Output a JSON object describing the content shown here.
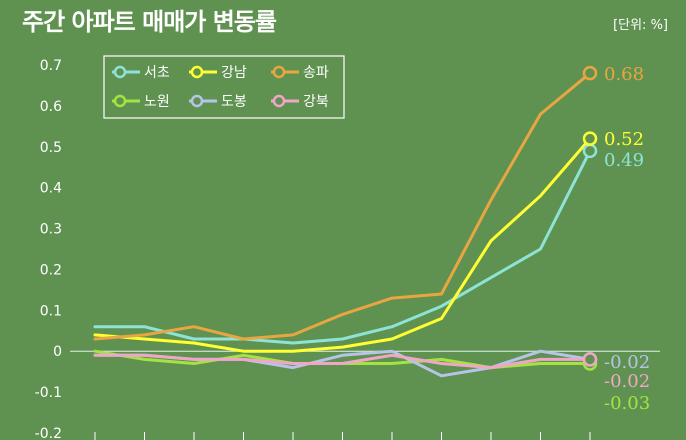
{
  "chart_data": {
    "type": "line",
    "title": "주간 아파트 매매가 변동률",
    "unit_label": "[단위: %]",
    "ylim": [
      -0.2,
      0.7
    ],
    "yticks": [
      0.7,
      0.6,
      0.5,
      0.4,
      0.3,
      0.2,
      0.1,
      0,
      -0.1,
      -0.2
    ],
    "ytick_labels": [
      "0.7",
      "0.6",
      "0.5",
      "0.4",
      "0.3",
      "0.2",
      "0.1",
      "0",
      "-0.1",
      "-0.2"
    ],
    "grid": false,
    "legend_position": "top-left",
    "series": [
      {
        "name": "서초",
        "color": "#8fe3d6",
        "values": [
          0.06,
          0.06,
          0.03,
          0.03,
          0.02,
          0.03,
          0.06,
          0.11,
          0.18,
          0.25,
          0.49
        ],
        "end_label": "0.49"
      },
      {
        "name": "강남",
        "color": "#ffff33",
        "values": [
          0.04,
          0.03,
          0.02,
          0.0,
          0.0,
          0.01,
          0.03,
          0.08,
          0.27,
          0.38,
          0.52
        ],
        "end_label": "0.52"
      },
      {
        "name": "송파",
        "color": "#e8a642",
        "values": [
          0.03,
          0.04,
          0.06,
          0.03,
          0.04,
          0.09,
          0.13,
          0.14,
          0.37,
          0.58,
          0.68
        ],
        "end_label": "0.68"
      },
      {
        "name": "노원",
        "color": "#a4e341",
        "values": [
          0.0,
          -0.02,
          -0.03,
          -0.01,
          -0.03,
          -0.03,
          -0.03,
          -0.02,
          -0.04,
          -0.03,
          -0.03
        ],
        "end_label": "-0.03"
      },
      {
        "name": "도봉",
        "color": "#b7c4e8",
        "values": [
          -0.01,
          -0.01,
          -0.02,
          -0.02,
          -0.04,
          -0.01,
          0.0,
          -0.06,
          -0.04,
          0.0,
          -0.02
        ],
        "end_label": "-0.02"
      },
      {
        "name": "강북",
        "color": "#f0a6c6",
        "values": [
          -0.01,
          -0.01,
          -0.02,
          -0.02,
          -0.03,
          -0.03,
          -0.01,
          -0.03,
          -0.04,
          -0.02,
          -0.02
        ],
        "end_label": "-0.02"
      }
    ]
  }
}
